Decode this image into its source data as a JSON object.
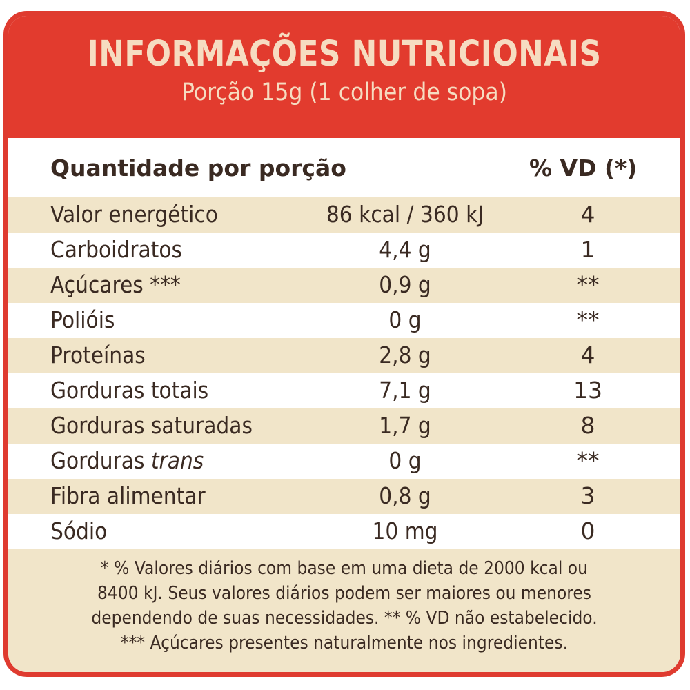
{
  "header": {
    "title": "INFORMAÇÕES NUTRICIONAIS",
    "subtitle": "Porção 15g (1 colher de sopa)"
  },
  "columns": {
    "quantity": "Quantidade por porção",
    "vd": "% VD (*)"
  },
  "rows": [
    {
      "name": "Valor energético",
      "amount": "86 kcal / 360 kJ",
      "vd": "4"
    },
    {
      "name": "Carboidratos",
      "amount": "4,4 g",
      "vd": "1"
    },
    {
      "name": "Açúcares ***",
      "amount": "0,9 g",
      "vd": "**"
    },
    {
      "name": "Polióis",
      "amount": "0 g",
      "vd": "**"
    },
    {
      "name": "Proteínas",
      "amount": "2,8 g",
      "vd": "4"
    },
    {
      "name": "Gorduras totais",
      "amount": "7,1 g",
      "vd": "13"
    },
    {
      "name": "Gorduras saturadas",
      "amount": "1,7 g",
      "vd": "8"
    },
    {
      "name": "Gorduras",
      "name_italic": "trans",
      "amount": "0 g",
      "vd": "**"
    },
    {
      "name": "Fibra alimentar",
      "amount": "0,8 g",
      "vd": "3"
    },
    {
      "name": "Sódio",
      "amount": "10 mg",
      "vd": "0"
    }
  ],
  "footnote": [
    "* % Valores diários com base em uma dieta de 2000 kcal ou",
    "8400 kJ. Seus valores diários podem ser maiores ou menores",
    "dependendo de suas necessidades. ** % VD não estabelecido.",
    "*** Açúcares presentes naturalmente nos ingredientes."
  ],
  "colors": {
    "red": "#e23b2e",
    "header_text": "#f6dcc1",
    "beige": "#f1e5c9",
    "text": "#3a2a22"
  }
}
